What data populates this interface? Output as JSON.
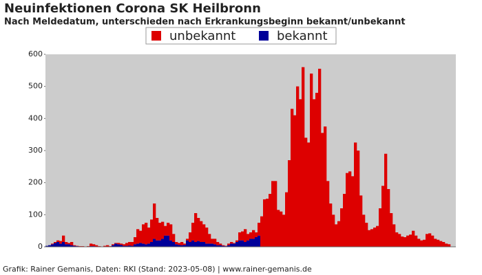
{
  "chart_data": {
    "type": "stacked_bar",
    "title": "Neuinfektionen Corona SK Heilbronn",
    "subtitle": "Nach Meldedatum, unterschieden nach Erkrankungsbeginn bekannt/unbekannt",
    "footer": "Grafik: Rainer Gemanis, Daten: RKI (Stand: 2023-05-08) | www.rainer-gemanis.de",
    "ylim": [
      0,
      600
    ],
    "yticks": [
      0,
      100,
      200,
      300,
      400,
      500,
      600
    ],
    "grid": false,
    "series": [
      {
        "name": "unbekannt",
        "color": "#dd0000",
        "values": [
          0,
          0,
          2,
          3,
          5,
          8,
          20,
          7,
          4,
          10,
          2,
          1,
          1,
          1,
          1,
          1,
          8,
          6,
          4,
          2,
          1,
          2,
          4,
          1,
          3,
          2,
          4,
          4,
          5,
          9,
          11,
          12,
          22,
          45,
          38,
          60,
          67,
          50,
          70,
          110,
          70,
          55,
          53,
          30,
          40,
          50,
          25,
          7,
          6,
          10,
          4,
          5,
          30,
          55,
          90,
          72,
          65,
          55,
          50,
          30,
          15,
          17,
          10,
          5,
          2,
          1,
          5,
          5,
          2,
          5,
          25,
          28,
          40,
          20,
          20,
          27,
          15,
          40,
          95,
          148,
          150,
          165,
          205,
          205,
          115,
          110,
          100,
          170,
          270,
          430,
          410,
          500,
          460,
          560,
          340,
          325,
          540,
          460,
          480,
          555,
          355,
          375,
          205,
          135,
          100,
          70,
          80,
          120,
          165,
          230,
          235,
          220,
          325,
          300,
          160,
          100,
          75,
          52,
          55,
          60,
          65,
          120,
          190,
          290,
          180,
          105,
          70,
          45,
          40,
          32,
          30,
          35,
          38,
          50,
          35,
          25,
          20,
          22,
          40,
          42,
          35,
          25,
          22,
          18,
          15,
          10,
          8,
          4,
          3
        ]
      },
      {
        "name": "bekannt",
        "color": "#000099",
        "values": [
          3,
          5,
          8,
          12,
          15,
          10,
          15,
          8,
          8,
          5,
          3,
          2,
          1,
          1,
          0,
          1,
          2,
          2,
          1,
          0,
          0,
          1,
          1,
          1,
          5,
          10,
          8,
          6,
          3,
          3,
          4,
          3,
          8,
          10,
          12,
          10,
          8,
          10,
          15,
          25,
          20,
          20,
          25,
          35,
          35,
          20,
          15,
          8,
          6,
          5,
          6,
          20,
          15,
          20,
          15,
          18,
          15,
          15,
          10,
          10,
          10,
          8,
          5,
          5,
          3,
          2,
          5,
          10,
          10,
          15,
          20,
          20,
          15,
          20,
          25,
          25,
          30,
          35,
          0,
          0,
          0,
          0,
          0,
          0,
          0,
          0,
          0,
          0,
          0,
          0,
          0,
          0,
          0,
          0,
          0,
          0,
          0,
          0,
          0,
          0,
          0,
          0,
          0,
          0,
          0,
          0,
          0,
          0,
          0,
          0,
          0,
          0,
          0,
          0,
          0,
          0,
          0,
          0,
          0,
          0,
          0,
          0,
          0,
          0,
          0,
          0,
          0,
          0,
          0,
          0,
          0,
          0,
          0,
          0,
          0,
          0,
          0,
          0,
          0,
          0,
          0,
          0,
          0,
          0,
          0,
          0,
          0
        ]
      }
    ]
  }
}
